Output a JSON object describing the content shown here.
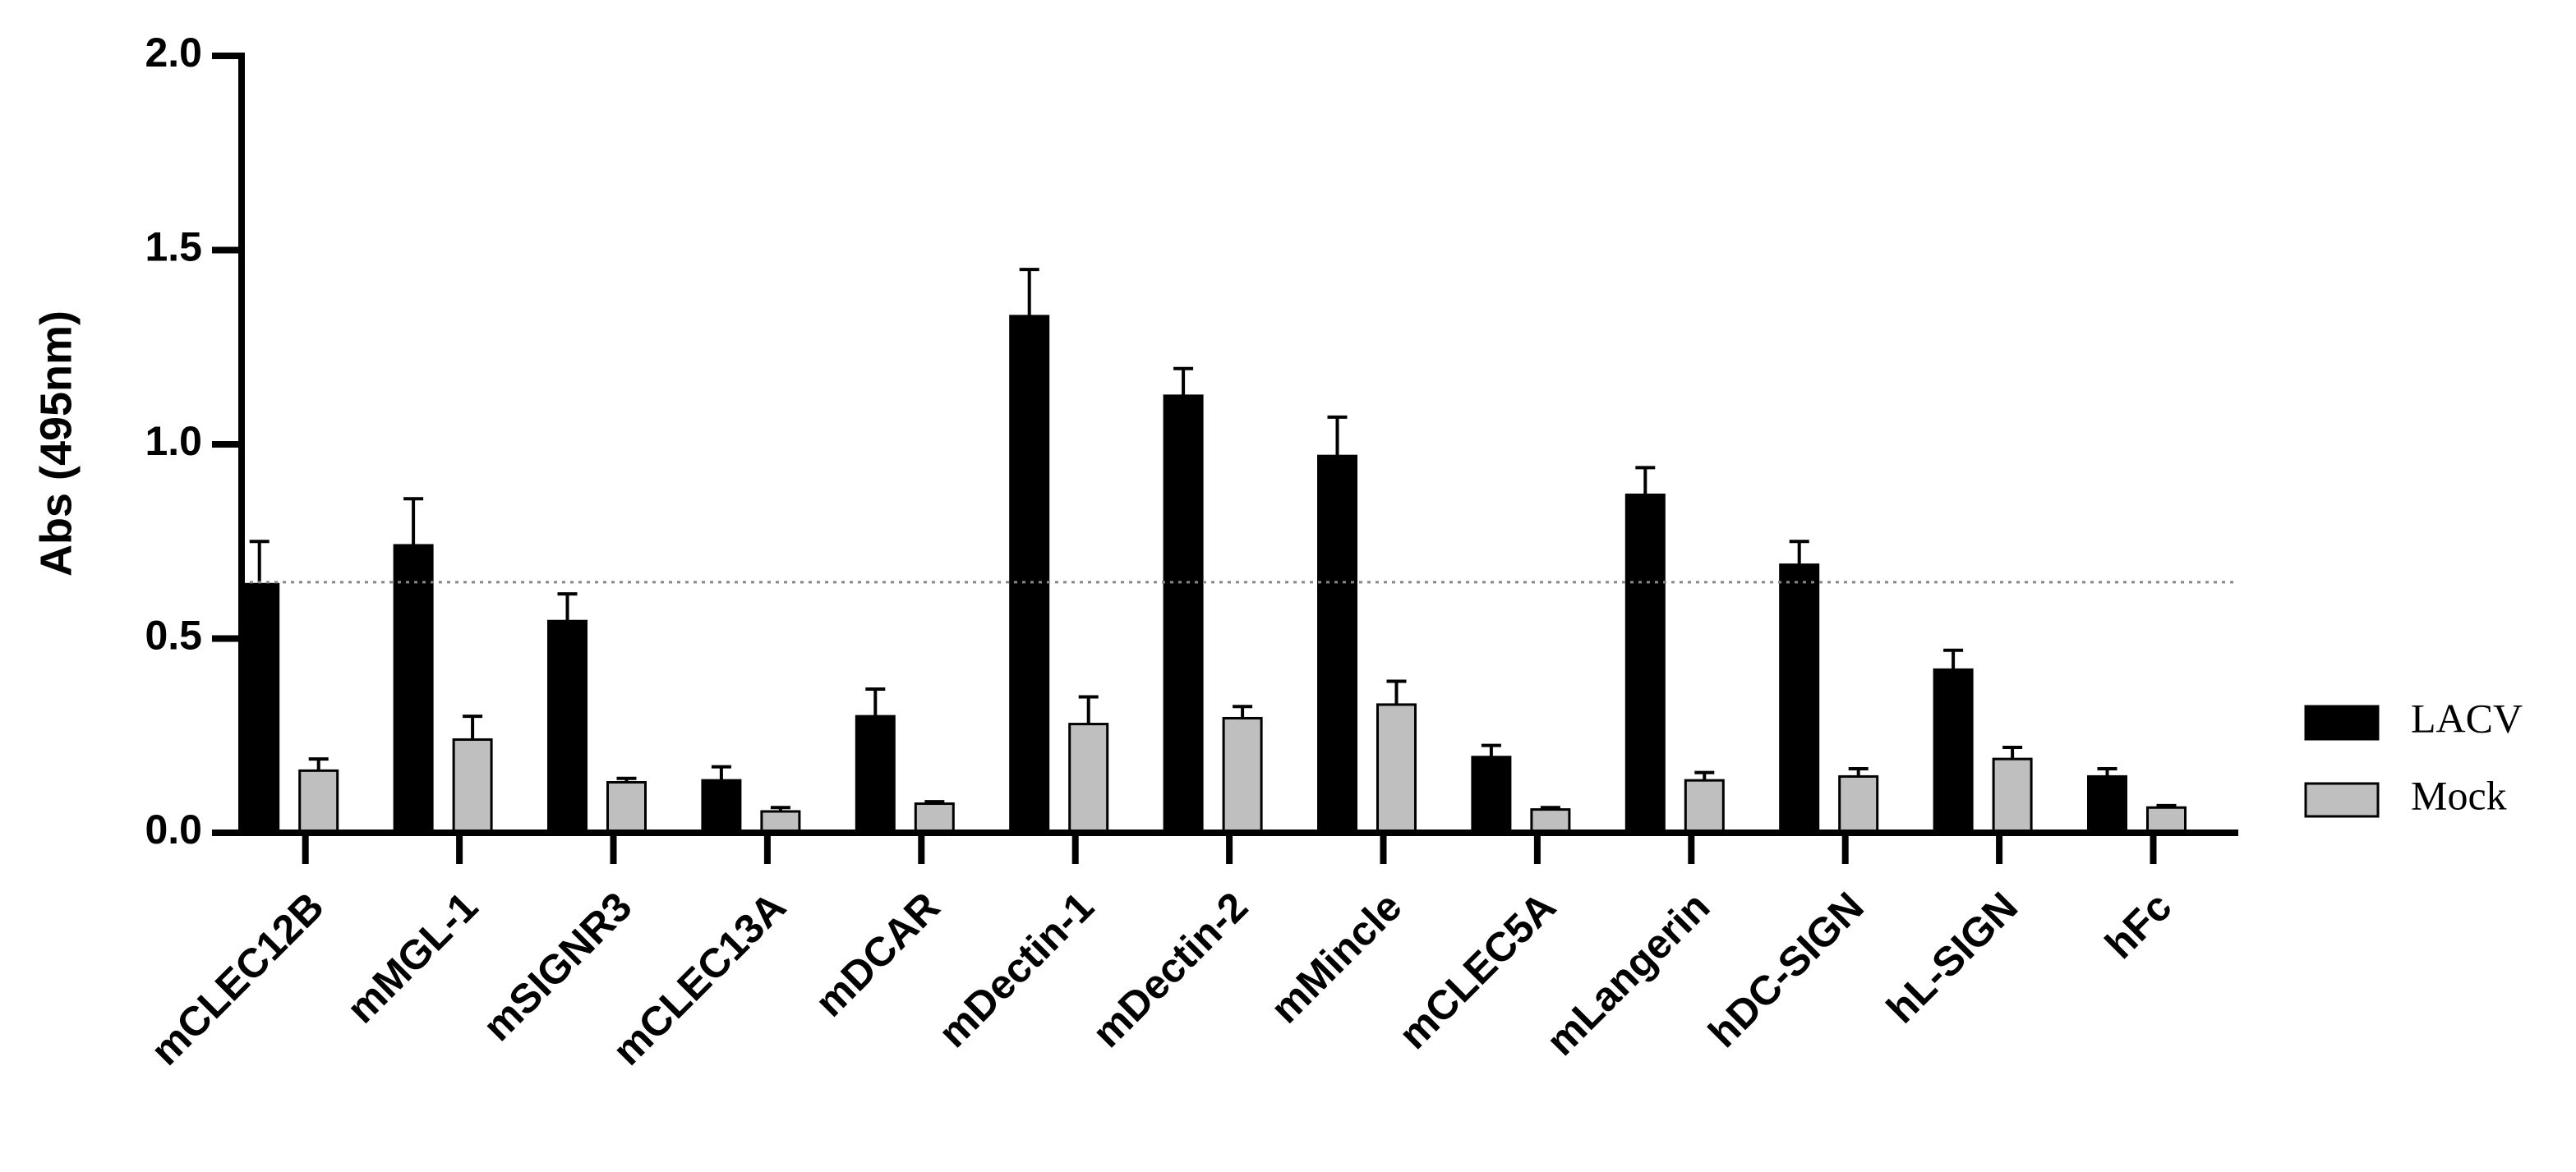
{
  "chart_data": {
    "type": "bar",
    "y_label": "Abs (495nm)",
    "categories": [
      "mCLEC12B",
      "mMGL-1",
      "mSIGNR3",
      "mCLEC13A",
      "mDCAR",
      "mDectin-1",
      "mDectin-2",
      "mMincle",
      "mCLEC5A",
      "mLangerin",
      "hDC-SIGN",
      "hL-SIGN",
      "hFc"
    ],
    "series": [
      {
        "name": "LACV",
        "color": "#000000",
        "values": [
          0.64,
          0.74,
          0.545,
          0.135,
          0.3,
          1.33,
          1.125,
          0.97,
          0.195,
          0.87,
          0.69,
          0.42,
          0.145
        ],
        "errors": [
          0.11,
          0.12,
          0.07,
          0.035,
          0.07,
          0.12,
          0.07,
          0.1,
          0.03,
          0.07,
          0.06,
          0.05,
          0.02
        ]
      },
      {
        "name": "Mock",
        "color": "#bfbfbf",
        "values": [
          0.16,
          0.24,
          0.13,
          0.055,
          0.075,
          0.28,
          0.295,
          0.33,
          0.06,
          0.135,
          0.145,
          0.19,
          0.065
        ],
        "errors": [
          0.03,
          0.06,
          0.01,
          0.01,
          0.005,
          0.07,
          0.03,
          0.06,
          0.005,
          0.02,
          0.02,
          0.03,
          0.005
        ]
      }
    ],
    "reference_line": 0.645,
    "ylim": [
      0,
      2
    ],
    "yticks": [
      {
        "value": 0,
        "label": "0.0"
      },
      {
        "value": 0.5,
        "label": "0.5"
      },
      {
        "value": 1,
        "label": "1.0"
      },
      {
        "value": 1.5,
        "label": "1.5"
      },
      {
        "value": 2,
        "label": "2.0"
      }
    ],
    "legend": "right"
  }
}
